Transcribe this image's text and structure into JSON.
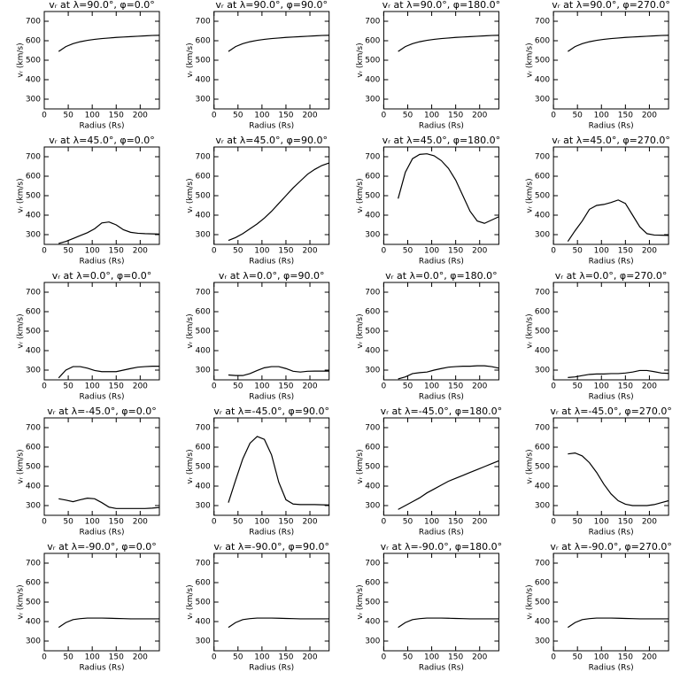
{
  "chart_data": [
    {
      "type": "line",
      "title": "vᵣ at λ=90.0°, φ=0.0°",
      "x_label": "Radius (Rs)",
      "y_label": "vᵣ (km/s)",
      "color": "#000000",
      "xlim": [
        0,
        240
      ],
      "ylim": [
        250,
        750
      ],
      "xticks": [
        0,
        50,
        100,
        150,
        200
      ],
      "yticks": [
        300,
        400,
        500,
        600,
        700
      ],
      "x": [
        30,
        45,
        60,
        75,
        90,
        105,
        120,
        135,
        150,
        165,
        180,
        195,
        210,
        225,
        240
      ],
      "values": [
        545,
        570,
        585,
        595,
        602,
        607,
        611,
        614,
        617,
        619,
        621,
        623,
        625,
        627,
        628
      ]
    },
    {
      "type": "line",
      "title": "vᵣ at λ=90.0°, φ=90.0°",
      "x_label": "Radius (Rs)",
      "y_label": "vᵣ (km/s)",
      "color": "#000000",
      "xlim": [
        0,
        240
      ],
      "ylim": [
        250,
        750
      ],
      "xticks": [
        0,
        50,
        100,
        150,
        200
      ],
      "yticks": [
        300,
        400,
        500,
        600,
        700
      ],
      "x": [
        30,
        45,
        60,
        75,
        90,
        105,
        120,
        135,
        150,
        165,
        180,
        195,
        210,
        225,
        240
      ],
      "values": [
        545,
        570,
        585,
        595,
        602,
        607,
        611,
        614,
        617,
        619,
        621,
        623,
        625,
        627,
        628
      ]
    },
    {
      "type": "line",
      "title": "vᵣ at λ=90.0°, φ=180.0°",
      "x_label": "Radius (Rs)",
      "y_label": "vᵣ (km/s)",
      "color": "#000000",
      "xlim": [
        0,
        240
      ],
      "ylim": [
        250,
        750
      ],
      "xticks": [
        0,
        50,
        100,
        150,
        200
      ],
      "yticks": [
        300,
        400,
        500,
        600,
        700
      ],
      "x": [
        30,
        45,
        60,
        75,
        90,
        105,
        120,
        135,
        150,
        165,
        180,
        195,
        210,
        225,
        240
      ],
      "values": [
        545,
        570,
        585,
        595,
        602,
        607,
        611,
        614,
        617,
        619,
        621,
        623,
        625,
        627,
        628
      ]
    },
    {
      "type": "line",
      "title": "vᵣ at λ=90.0°, φ=270.0°",
      "x_label": "Radius (Rs)",
      "y_label": "vᵣ (km/s)",
      "color": "#000000",
      "xlim": [
        0,
        240
      ],
      "ylim": [
        250,
        750
      ],
      "xticks": [
        0,
        50,
        100,
        150,
        200
      ],
      "yticks": [
        300,
        400,
        500,
        600,
        700
      ],
      "x": [
        30,
        45,
        60,
        75,
        90,
        105,
        120,
        135,
        150,
        165,
        180,
        195,
        210,
        225,
        240
      ],
      "values": [
        545,
        570,
        585,
        595,
        602,
        607,
        611,
        614,
        617,
        619,
        621,
        623,
        625,
        627,
        628
      ]
    },
    {
      "type": "line",
      "title": "vᵣ at λ=45.0°, φ=0.0°",
      "x_label": "Radius (Rs)",
      "y_label": "vᵣ (km/s)",
      "color": "#000000",
      "xlim": [
        0,
        240
      ],
      "ylim": [
        250,
        750
      ],
      "xticks": [
        0,
        50,
        100,
        150,
        200
      ],
      "yticks": [
        300,
        400,
        500,
        600,
        700
      ],
      "x": [
        30,
        45,
        60,
        75,
        90,
        105,
        120,
        135,
        150,
        165,
        180,
        195,
        210,
        225,
        240
      ],
      "values": [
        255,
        265,
        280,
        295,
        310,
        330,
        360,
        365,
        350,
        325,
        312,
        307,
        305,
        304,
        303
      ]
    },
    {
      "type": "line",
      "title": "vᵣ at λ=45.0°, φ=90.0°",
      "x_label": "Radius (Rs)",
      "y_label": "vᵣ (km/s)",
      "color": "#000000",
      "xlim": [
        0,
        240
      ],
      "ylim": [
        250,
        750
      ],
      "xticks": [
        0,
        50,
        100,
        150,
        200
      ],
      "yticks": [
        300,
        400,
        500,
        600,
        700
      ],
      "x": [
        30,
        45,
        60,
        75,
        90,
        105,
        120,
        135,
        150,
        165,
        180,
        195,
        210,
        225,
        240
      ],
      "values": [
        270,
        285,
        305,
        330,
        355,
        385,
        420,
        460,
        500,
        540,
        575,
        610,
        635,
        655,
        668
      ]
    },
    {
      "type": "line",
      "title": "vᵣ at λ=45.0°, φ=180.0°",
      "x_label": "Radius (Rs)",
      "y_label": "vᵣ (km/s)",
      "color": "#000000",
      "xlim": [
        0,
        240
      ],
      "ylim": [
        250,
        750
      ],
      "xticks": [
        0,
        50,
        100,
        150,
        200
      ],
      "yticks": [
        300,
        400,
        500,
        600,
        700
      ],
      "x": [
        30,
        45,
        60,
        75,
        90,
        105,
        120,
        135,
        150,
        165,
        180,
        195,
        210,
        225,
        240
      ],
      "values": [
        485,
        620,
        690,
        712,
        715,
        705,
        680,
        640,
        580,
        500,
        420,
        370,
        358,
        375,
        392
      ]
    },
    {
      "type": "line",
      "title": "vᵣ at λ=45.0°, φ=270.0°",
      "x_label": "Radius (Rs)",
      "y_label": "vᵣ (km/s)",
      "color": "#000000",
      "xlim": [
        0,
        240
      ],
      "ylim": [
        250,
        750
      ],
      "xticks": [
        0,
        50,
        100,
        150,
        200
      ],
      "yticks": [
        300,
        400,
        500,
        600,
        700
      ],
      "x": [
        30,
        45,
        60,
        75,
        90,
        105,
        120,
        135,
        150,
        165,
        180,
        195,
        210,
        225,
        240
      ],
      "values": [
        265,
        320,
        370,
        430,
        450,
        455,
        465,
        478,
        460,
        400,
        340,
        305,
        298,
        297,
        296
      ]
    },
    {
      "type": "line",
      "title": "vᵣ at λ=0.0°, φ=0.0°",
      "x_label": "Radius (Rs)",
      "y_label": "vᵣ (km/s)",
      "color": "#000000",
      "xlim": [
        0,
        240
      ],
      "ylim": [
        250,
        750
      ],
      "xticks": [
        0,
        50,
        100,
        150,
        200
      ],
      "yticks": [
        300,
        400,
        500,
        600,
        700
      ],
      "x": [
        30,
        45,
        60,
        75,
        90,
        105,
        120,
        135,
        150,
        165,
        180,
        195,
        210,
        225,
        240
      ],
      "values": [
        260,
        300,
        318,
        318,
        310,
        298,
        292,
        292,
        292,
        300,
        308,
        315,
        318,
        320,
        320
      ]
    },
    {
      "type": "line",
      "title": "vᵣ at λ=0.0°, φ=90.0°",
      "x_label": "Radius (Rs)",
      "y_label": "vᵣ (km/s)",
      "color": "#000000",
      "xlim": [
        0,
        240
      ],
      "ylim": [
        250,
        750
      ],
      "xticks": [
        0,
        50,
        100,
        150,
        200
      ],
      "yticks": [
        300,
        400,
        500,
        600,
        700
      ],
      "x": [
        30,
        45,
        60,
        75,
        90,
        105,
        120,
        135,
        150,
        165,
        180,
        195,
        210,
        225,
        240
      ],
      "values": [
        275,
        272,
        272,
        282,
        298,
        312,
        318,
        318,
        308,
        294,
        290,
        294,
        295,
        295,
        295
      ]
    },
    {
      "type": "line",
      "title": "vᵣ at λ=0.0°, φ=180.0°",
      "x_label": "Radius (Rs)",
      "y_label": "vᵣ (km/s)",
      "color": "#000000",
      "xlim": [
        0,
        240
      ],
      "ylim": [
        250,
        750
      ],
      "xticks": [
        0,
        50,
        100,
        150,
        200
      ],
      "yticks": [
        300,
        400,
        500,
        600,
        700
      ],
      "x": [
        30,
        45,
        60,
        75,
        90,
        105,
        120,
        135,
        150,
        165,
        180,
        195,
        210,
        225,
        240
      ],
      "values": [
        255,
        265,
        282,
        287,
        290,
        300,
        308,
        315,
        318,
        320,
        320,
        322,
        322,
        318,
        310
      ]
    },
    {
      "type": "line",
      "title": "vᵣ at λ=0.0°, φ=270.0°",
      "x_label": "Radius (Rs)",
      "y_label": "vᵣ (km/s)",
      "color": "#000000",
      "xlim": [
        0,
        240
      ],
      "ylim": [
        250,
        750
      ],
      "xticks": [
        0,
        50,
        100,
        150,
        200
      ],
      "yticks": [
        300,
        400,
        500,
        600,
        700
      ],
      "x": [
        30,
        45,
        60,
        75,
        90,
        105,
        120,
        135,
        150,
        165,
        180,
        195,
        210,
        225,
        240
      ],
      "values": [
        262,
        265,
        272,
        278,
        280,
        280,
        282,
        282,
        285,
        290,
        298,
        298,
        292,
        285,
        283
      ]
    },
    {
      "type": "line",
      "title": "vᵣ at λ=-45.0°, φ=0.0°",
      "x_label": "Radius (Rs)",
      "y_label": "vᵣ (km/s)",
      "color": "#000000",
      "xlim": [
        0,
        240
      ],
      "ylim": [
        250,
        750
      ],
      "xticks": [
        0,
        50,
        100,
        150,
        200
      ],
      "yticks": [
        300,
        400,
        500,
        600,
        700
      ],
      "x": [
        30,
        45,
        60,
        75,
        90,
        105,
        120,
        135,
        150,
        165,
        180,
        195,
        210,
        225,
        240
      ],
      "values": [
        335,
        328,
        320,
        330,
        338,
        335,
        315,
        292,
        285,
        285,
        285,
        285,
        285,
        287,
        290
      ]
    },
    {
      "type": "line",
      "title": "vᵣ at λ=-45.0°, φ=90.0°",
      "x_label": "Radius (Rs)",
      "y_label": "vᵣ (km/s)",
      "color": "#000000",
      "xlim": [
        0,
        240
      ],
      "ylim": [
        250,
        750
      ],
      "xticks": [
        0,
        50,
        100,
        150,
        200
      ],
      "yticks": [
        300,
        400,
        500,
        600,
        700
      ],
      "x": [
        30,
        45,
        60,
        75,
        90,
        105,
        120,
        135,
        150,
        165,
        180,
        195,
        210,
        225,
        240
      ],
      "values": [
        315,
        430,
        540,
        620,
        655,
        640,
        560,
        420,
        330,
        308,
        305,
        305,
        305,
        304,
        303
      ]
    },
    {
      "type": "line",
      "title": "vᵣ at λ=-45.0°, φ=180.0°",
      "x_label": "Radius (Rs)",
      "y_label": "vᵣ (km/s)",
      "color": "#000000",
      "xlim": [
        0,
        240
      ],
      "ylim": [
        250,
        750
      ],
      "xticks": [
        0,
        50,
        100,
        150,
        200
      ],
      "yticks": [
        300,
        400,
        500,
        600,
        700
      ],
      "x": [
        30,
        45,
        60,
        75,
        90,
        105,
        120,
        135,
        150,
        165,
        180,
        195,
        210,
        225,
        240
      ],
      "values": [
        280,
        300,
        320,
        340,
        365,
        385,
        405,
        425,
        440,
        455,
        470,
        485,
        500,
        515,
        530
      ]
    },
    {
      "type": "line",
      "title": "vᵣ at λ=-45.0°, φ=270.0°",
      "x_label": "Radius (Rs)",
      "y_label": "vᵣ (km/s)",
      "color": "#000000",
      "xlim": [
        0,
        240
      ],
      "ylim": [
        250,
        750
      ],
      "xticks": [
        0,
        50,
        100,
        150,
        200
      ],
      "yticks": [
        300,
        400,
        500,
        600,
        700
      ],
      "x": [
        30,
        45,
        60,
        75,
        90,
        105,
        120,
        135,
        150,
        165,
        180,
        195,
        210,
        225,
        240
      ],
      "values": [
        565,
        570,
        555,
        520,
        470,
        410,
        360,
        325,
        307,
        300,
        300,
        300,
        305,
        315,
        325
      ]
    },
    {
      "type": "line",
      "title": "vᵣ at λ=-90.0°, φ=0.0°",
      "x_label": "Radius (Rs)",
      "y_label": "vᵣ (km/s)",
      "color": "#000000",
      "xlim": [
        0,
        240
      ],
      "ylim": [
        250,
        750
      ],
      "xticks": [
        0,
        50,
        100,
        150,
        200
      ],
      "yticks": [
        300,
        400,
        500,
        600,
        700
      ],
      "x": [
        30,
        45,
        60,
        75,
        90,
        105,
        120,
        135,
        150,
        165,
        180,
        195,
        210,
        225,
        240
      ],
      "values": [
        370,
        395,
        410,
        415,
        418,
        418,
        418,
        417,
        416,
        415,
        414,
        414,
        414,
        414,
        414
      ]
    },
    {
      "type": "line",
      "title": "vᵣ at λ=-90.0°, φ=90.0°",
      "x_label": "Radius (Rs)",
      "y_label": "vᵣ (km/s)",
      "color": "#000000",
      "xlim": [
        0,
        240
      ],
      "ylim": [
        250,
        750
      ],
      "xticks": [
        0,
        50,
        100,
        150,
        200
      ],
      "yticks": [
        300,
        400,
        500,
        600,
        700
      ],
      "x": [
        30,
        45,
        60,
        75,
        90,
        105,
        120,
        135,
        150,
        165,
        180,
        195,
        210,
        225,
        240
      ],
      "values": [
        370,
        395,
        410,
        415,
        418,
        418,
        418,
        417,
        416,
        415,
        414,
        414,
        414,
        414,
        414
      ]
    },
    {
      "type": "line",
      "title": "vᵣ at λ=-90.0°, φ=180.0°",
      "x_label": "Radius (Rs)",
      "y_label": "vᵣ (km/s)",
      "color": "#000000",
      "xlim": [
        0,
        240
      ],
      "ylim": [
        250,
        750
      ],
      "xticks": [
        0,
        50,
        100,
        150,
        200
      ],
      "yticks": [
        300,
        400,
        500,
        600,
        700
      ],
      "x": [
        30,
        45,
        60,
        75,
        90,
        105,
        120,
        135,
        150,
        165,
        180,
        195,
        210,
        225,
        240
      ],
      "values": [
        370,
        395,
        410,
        415,
        418,
        418,
        418,
        417,
        416,
        415,
        414,
        414,
        414,
        414,
        414
      ]
    },
    {
      "type": "line",
      "title": "vᵣ at λ=-90.0°, φ=270.0°",
      "x_label": "Radius (Rs)",
      "y_label": "vᵣ (km/s)",
      "color": "#000000",
      "xlim": [
        0,
        240
      ],
      "ylim": [
        250,
        750
      ],
      "xticks": [
        0,
        50,
        100,
        150,
        200
      ],
      "yticks": [
        300,
        400,
        500,
        600,
        700
      ],
      "x": [
        30,
        45,
        60,
        75,
        90,
        105,
        120,
        135,
        150,
        165,
        180,
        195,
        210,
        225,
        240
      ],
      "values": [
        370,
        395,
        410,
        415,
        418,
        418,
        418,
        417,
        416,
        415,
        414,
        414,
        414,
        414,
        414
      ]
    }
  ]
}
